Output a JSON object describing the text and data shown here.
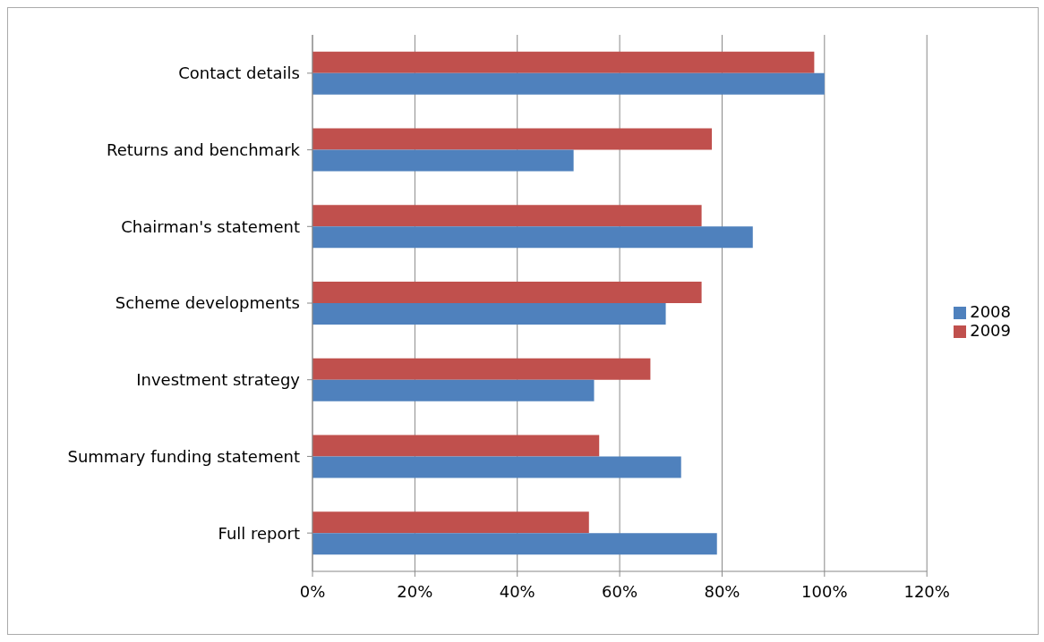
{
  "chart_data": {
    "type": "bar",
    "orientation": "horizontal",
    "categories": [
      "Contact details",
      "Returns and benchmark",
      "Chairman's statement",
      "Scheme developments",
      "Investment strategy",
      "Summary funding statement",
      "Full report"
    ],
    "series": [
      {
        "name": "2009",
        "color": "#c0504d",
        "values": [
          98,
          78,
          76,
          76,
          66,
          56,
          54
        ]
      },
      {
        "name": "2008",
        "color": "#4f81bd",
        "values": [
          100,
          51,
          86,
          69,
          55,
          72,
          79
        ]
      }
    ],
    "xlim": [
      0,
      120
    ],
    "xticks": [
      {
        "value": 0,
        "label": "0%"
      },
      {
        "value": 20,
        "label": "20%"
      },
      {
        "value": 40,
        "label": "40%"
      },
      {
        "value": 60,
        "label": "60%"
      },
      {
        "value": 80,
        "label": "80%"
      },
      {
        "value": 100,
        "label": "100%"
      },
      {
        "value": 120,
        "label": "120%"
      }
    ],
    "grid": "x",
    "legend": "right"
  }
}
